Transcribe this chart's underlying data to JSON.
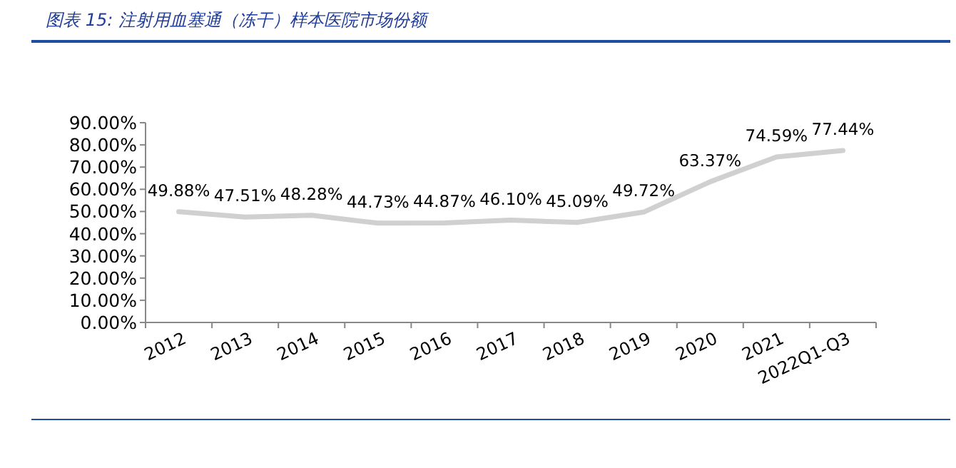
{
  "chart_data": {
    "type": "line",
    "title": "图表 15:  注射用血塞通（冻干）样本医院市场份额",
    "categories": [
      "2012",
      "2013",
      "2014",
      "2015",
      "2016",
      "2017",
      "2018",
      "2019",
      "2020",
      "2021",
      "2022Q1-Q3"
    ],
    "series": [
      {
        "color": "#d0d0d0",
        "values": [
          49.88,
          47.51,
          48.28,
          44.73,
          44.87,
          46.1,
          45.09,
          49.72,
          63.37,
          74.59,
          77.44
        ],
        "value_labels": [
          "49.88%",
          "47.51%",
          "48.28%",
          "44.73%",
          "44.87%",
          "46.10%",
          "45.09%",
          "49.72%",
          "63.37%",
          "74.59%",
          "77.44%"
        ]
      }
    ],
    "ylim": [
      0,
      90
    ],
    "yticks": [
      {
        "value": 0,
        "label": "0.00%"
      },
      {
        "value": 10,
        "label": "10.00%"
      },
      {
        "value": 20,
        "label": "20.00%"
      },
      {
        "value": 30,
        "label": "30.00%"
      },
      {
        "value": 40,
        "label": "40.00%"
      },
      {
        "value": 50,
        "label": "50.00%"
      },
      {
        "value": 60,
        "label": "60.00%"
      },
      {
        "value": 70,
        "label": "70.00%"
      },
      {
        "value": 80,
        "label": "80.00%"
      },
      {
        "value": 90,
        "label": "90.00%"
      }
    ],
    "marker": "none",
    "line_style": "solid",
    "grid": false
  }
}
